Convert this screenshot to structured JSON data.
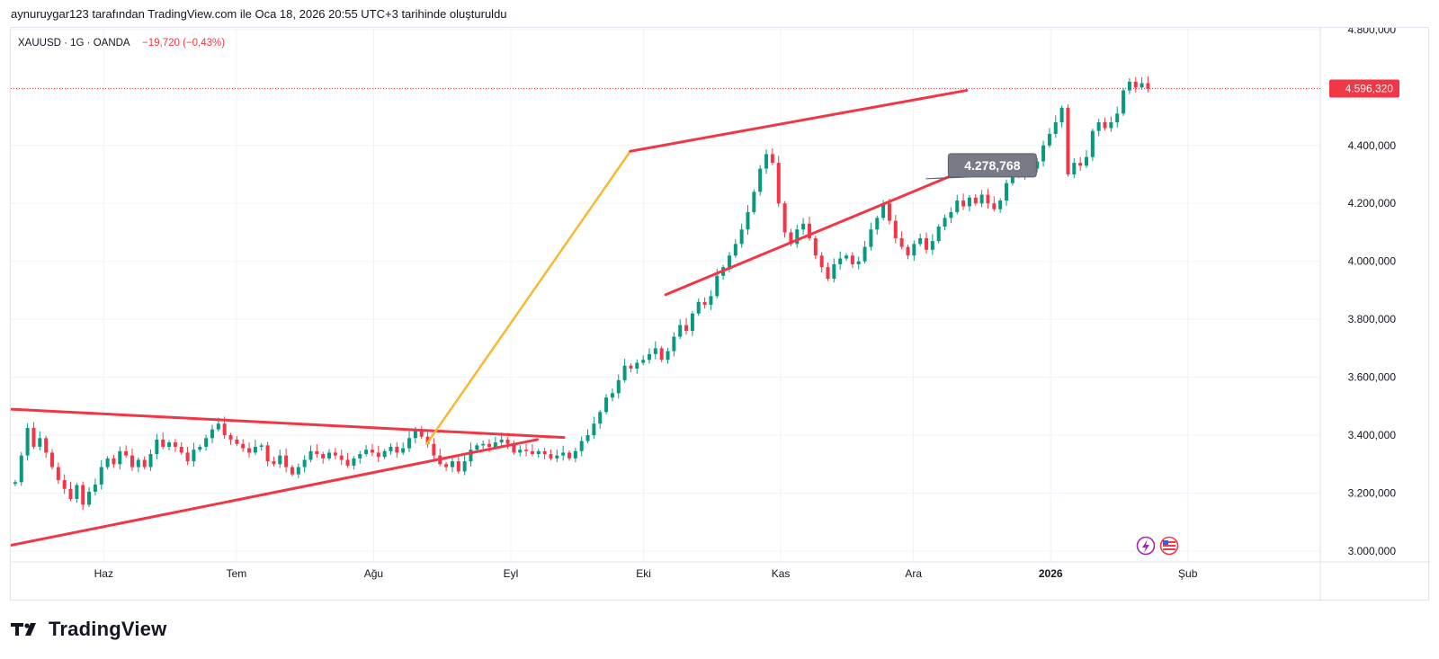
{
  "header": {
    "attribution": "aynuruygar123 tarafından TradingView.com ile Oca 18, 2026 20:55 UTC+3 tarihinde oluşturuldu"
  },
  "logo": {
    "text": "TradingView"
  },
  "colors": {
    "up": "#089981",
    "down": "#f23645",
    "trendline": "#f23645",
    "fib_line": "#f7b92f",
    "grid": "#f0f3fa",
    "callout_bg": "#787b86"
  },
  "chart_data": {
    "type": "candlestick",
    "symbol": "XAUUSD",
    "interval": "1G",
    "source": "OANDA",
    "legend": {
      "symbol_label": "XAUUSD · 1G · OANDA",
      "change_label": "−19,720 (−0,43%)"
    },
    "current_price": 4596.32,
    "current_price_label": "4.596,320",
    "y_range": [
      2960,
      4840
    ],
    "y_ticks": [
      {
        "value": 3000,
        "label": "3.000,000"
      },
      {
        "value": 3200,
        "label": "3.200,000"
      },
      {
        "value": 3400,
        "label": "3.400,000"
      },
      {
        "value": 3600,
        "label": "3.600,000"
      },
      {
        "value": 3800,
        "label": "3.800,000"
      },
      {
        "value": 4000,
        "label": "4.000,000"
      },
      {
        "value": 4200,
        "label": "4.200,000"
      },
      {
        "value": 4400,
        "label": "4.400,000"
      },
      {
        "value": 4600,
        "label": "4.600,000"
      },
      {
        "value": 4800,
        "label": "4.800,000"
      }
    ],
    "x_start": "2025-05-11",
    "x_days": 268,
    "x_ticks": [
      {
        "day": 21,
        "label": "Haz",
        "bold": false
      },
      {
        "day": 51,
        "label": "Tem",
        "bold": false
      },
      {
        "day": 82,
        "label": "Ağu",
        "bold": false
      },
      {
        "day": 113,
        "label": "Eyl",
        "bold": false
      },
      {
        "day": 143,
        "label": "Eki",
        "bold": false
      },
      {
        "day": 174,
        "label": "Kas",
        "bold": false
      },
      {
        "day": 204,
        "label": "Ara",
        "bold": false
      },
      {
        "day": 235,
        "label": "2026",
        "bold": true
      },
      {
        "day": 266,
        "label": "Şub",
        "bold": false
      }
    ],
    "candles": [
      {
        "d": 1,
        "c": 3238
      },
      {
        "d": 2,
        "c": 3330
      },
      {
        "d": 3,
        "c": 3425
      },
      {
        "d": 4,
        "c": 3360
      },
      {
        "d": 5,
        "c": 3390
      },
      {
        "d": 6,
        "c": 3340
      },
      {
        "d": 7,
        "c": 3290
      },
      {
        "d": 8,
        "c": 3245
      },
      {
        "d": 9,
        "c": 3215
      },
      {
        "d": 10,
        "c": 3180
      },
      {
        "d": 11,
        "c": 3228
      },
      {
        "d": 12,
        "c": 3160
      },
      {
        "d": 13,
        "c": 3205
      },
      {
        "d": 14,
        "c": 3230
      },
      {
        "d": 15,
        "c": 3290
      },
      {
        "d": 16,
        "c": 3320
      },
      {
        "d": 17,
        "c": 3300
      },
      {
        "d": 18,
        "c": 3345
      },
      {
        "d": 19,
        "c": 3330
      },
      {
        "d": 20,
        "c": 3290
      },
      {
        "d": 21,
        "c": 3315
      },
      {
        "d": 22,
        "c": 3290
      },
      {
        "d": 23,
        "c": 3335
      },
      {
        "d": 24,
        "c": 3385
      },
      {
        "d": 25,
        "c": 3360
      },
      {
        "d": 26,
        "c": 3375
      },
      {
        "d": 27,
        "c": 3360
      },
      {
        "d": 28,
        "c": 3340
      },
      {
        "d": 29,
        "c": 3310
      },
      {
        "d": 30,
        "c": 3350
      },
      {
        "d": 31,
        "c": 3360
      },
      {
        "d": 32,
        "c": 3390
      },
      {
        "d": 33,
        "c": 3420
      },
      {
        "d": 34,
        "c": 3440
      },
      {
        "d": 35,
        "c": 3400
      },
      {
        "d": 36,
        "c": 3385
      },
      {
        "d": 37,
        "c": 3370
      },
      {
        "d": 38,
        "c": 3355
      },
      {
        "d": 39,
        "c": 3340
      },
      {
        "d": 40,
        "c": 3360
      },
      {
        "d": 41,
        "c": 3365
      },
      {
        "d": 42,
        "c": 3310
      },
      {
        "d": 43,
        "c": 3300
      },
      {
        "d": 44,
        "c": 3330
      },
      {
        "d": 45,
        "c": 3290
      },
      {
        "d": 46,
        "c": 3265
      },
      {
        "d": 47,
        "c": 3290
      },
      {
        "d": 48,
        "c": 3315
      },
      {
        "d": 49,
        "c": 3345
      },
      {
        "d": 50,
        "c": 3335
      },
      {
        "d": 51,
        "c": 3320
      },
      {
        "d": 52,
        "c": 3340
      },
      {
        "d": 53,
        "c": 3330
      },
      {
        "d": 54,
        "c": 3315
      },
      {
        "d": 55,
        "c": 3295
      },
      {
        "d": 56,
        "c": 3320
      },
      {
        "d": 57,
        "c": 3335
      },
      {
        "d": 58,
        "c": 3350
      },
      {
        "d": 59,
        "c": 3340
      },
      {
        "d": 60,
        "c": 3325
      },
      {
        "d": 61,
        "c": 3345
      },
      {
        "d": 62,
        "c": 3360
      },
      {
        "d": 63,
        "c": 3340
      },
      {
        "d": 64,
        "c": 3355
      },
      {
        "d": 65,
        "c": 3390
      },
      {
        "d": 66,
        "c": 3420
      },
      {
        "d": 67,
        "c": 3395
      },
      {
        "d": 68,
        "c": 3370
      },
      {
        "d": 69,
        "c": 3330
      },
      {
        "d": 70,
        "c": 3300
      },
      {
        "d": 71,
        "c": 3290
      },
      {
        "d": 72,
        "c": 3310
      },
      {
        "d": 73,
        "c": 3275
      },
      {
        "d": 74,
        "c": 3310
      },
      {
        "d": 75,
        "c": 3350
      },
      {
        "d": 76,
        "c": 3365
      },
      {
        "d": 77,
        "c": 3370
      },
      {
        "d": 78,
        "c": 3360
      },
      {
        "d": 79,
        "c": 3375
      },
      {
        "d": 80,
        "c": 3385
      },
      {
        "d": 81,
        "c": 3370
      },
      {
        "d": 82,
        "c": 3340
      },
      {
        "d": 83,
        "c": 3350
      },
      {
        "d": 84,
        "c": 3345
      },
      {
        "d": 85,
        "c": 3335
      },
      {
        "d": 86,
        "c": 3345
      },
      {
        "d": 87,
        "c": 3335
      },
      {
        "d": 88,
        "c": 3320
      },
      {
        "d": 89,
        "c": 3330
      },
      {
        "d": 90,
        "c": 3340
      },
      {
        "d": 91,
        "c": 3320
      },
      {
        "d": 92,
        "c": 3345
      },
      {
        "d": 93,
        "c": 3380
      },
      {
        "d": 94,
        "c": 3400
      },
      {
        "d": 95,
        "c": 3440
      },
      {
        "d": 96,
        "c": 3480
      },
      {
        "d": 97,
        "c": 3530
      },
      {
        "d": 98,
        "c": 3545
      },
      {
        "d": 99,
        "c": 3590
      },
      {
        "d": 100,
        "c": 3640
      },
      {
        "d": 101,
        "c": 3630
      },
      {
        "d": 102,
        "c": 3650
      },
      {
        "d": 103,
        "c": 3660
      },
      {
        "d": 104,
        "c": 3680
      },
      {
        "d": 105,
        "c": 3700
      },
      {
        "d": 106,
        "c": 3660
      },
      {
        "d": 107,
        "c": 3690
      },
      {
        "d": 108,
        "c": 3740
      },
      {
        "d": 109,
        "c": 3780
      },
      {
        "d": 110,
        "c": 3760
      },
      {
        "d": 111,
        "c": 3820
      },
      {
        "d": 112,
        "c": 3860
      },
      {
        "d": 113,
        "c": 3850
      },
      {
        "d": 114,
        "c": 3880
      },
      {
        "d": 115,
        "c": 3950
      },
      {
        "d": 116,
        "c": 3980
      },
      {
        "d": 117,
        "c": 4020
      },
      {
        "d": 118,
        "c": 4060
      },
      {
        "d": 119,
        "c": 4110
      },
      {
        "d": 120,
        "c": 4170
      },
      {
        "d": 121,
        "c": 4240
      },
      {
        "d": 122,
        "c": 4320
      },
      {
        "d": 123,
        "c": 4370
      },
      {
        "d": 124,
        "c": 4340
      },
      {
        "d": 125,
        "c": 4200
      },
      {
        "d": 126,
        "c": 4100
      },
      {
        "d": 127,
        "c": 4060
      },
      {
        "d": 128,
        "c": 4110
      },
      {
        "d": 129,
        "c": 4130
      },
      {
        "d": 130,
        "c": 4080
      },
      {
        "d": 131,
        "c": 4020
      },
      {
        "d": 132,
        "c": 3980
      },
      {
        "d": 133,
        "c": 3940
      },
      {
        "d": 134,
        "c": 3990
      },
      {
        "d": 135,
        "c": 4010
      },
      {
        "d": 136,
        "c": 4020
      },
      {
        "d": 137,
        "c": 3990
      },
      {
        "d": 138,
        "c": 4000
      },
      {
        "d": 139,
        "c": 4050
      },
      {
        "d": 140,
        "c": 4110
      },
      {
        "d": 141,
        "c": 4150
      },
      {
        "d": 142,
        "c": 4200
      },
      {
        "d": 143,
        "c": 4140
      },
      {
        "d": 144,
        "c": 4080
      },
      {
        "d": 145,
        "c": 4050
      },
      {
        "d": 146,
        "c": 4020
      },
      {
        "d": 147,
        "c": 4060
      },
      {
        "d": 148,
        "c": 4080
      },
      {
        "d": 149,
        "c": 4040
      },
      {
        "d": 150,
        "c": 4070
      },
      {
        "d": 151,
        "c": 4120
      },
      {
        "d": 152,
        "c": 4150
      },
      {
        "d": 153,
        "c": 4170
      },
      {
        "d": 154,
        "c": 4210
      },
      {
        "d": 155,
        "c": 4190
      },
      {
        "d": 156,
        "c": 4220
      },
      {
        "d": 157,
        "c": 4200
      },
      {
        "d": 158,
        "c": 4230
      },
      {
        "d": 159,
        "c": 4200
      },
      {
        "d": 160,
        "c": 4180
      },
      {
        "d": 161,
        "c": 4210
      },
      {
        "d": 162,
        "c": 4270
      },
      {
        "d": 163,
        "c": 4330
      },
      {
        "d": 164,
        "c": 4300
      },
      {
        "d": 165,
        "c": 4340
      },
      {
        "d": 166,
        "c": 4320
      },
      {
        "d": 167,
        "c": 4345
      },
      {
        "d": 168,
        "c": 4400
      },
      {
        "d": 169,
        "c": 4440
      },
      {
        "d": 170,
        "c": 4480
      },
      {
        "d": 171,
        "c": 4530
      },
      {
        "d": 172,
        "c": 4300
      },
      {
        "d": 173,
        "c": 4340
      },
      {
        "d": 174,
        "c": 4330
      },
      {
        "d": 175,
        "c": 4360
      },
      {
        "d": 176,
        "c": 4450
      },
      {
        "d": 177,
        "c": 4480
      },
      {
        "d": 178,
        "c": 4460
      },
      {
        "d": 179,
        "c": 4480
      },
      {
        "d": 180,
        "c": 4510
      },
      {
        "d": 181,
        "c": 4590
      },
      {
        "d": 182,
        "c": 4620
      },
      {
        "d": 183,
        "c": 4600
      },
      {
        "d": 184,
        "c": 4615
      },
      {
        "d": 185,
        "c": 4596
      }
    ],
    "annotations": {
      "triangle_upper_line": {
        "from": {
          "day": 0,
          "price": 3490
        },
        "to": {
          "day": 125,
          "price": 3392
        }
      },
      "triangle_lower_line": {
        "from": {
          "day": 0,
          "price": 3020
        },
        "to": {
          "day": 119,
          "price": 3385
        }
      },
      "impulse_line": {
        "from": {
          "day": 94,
          "price": 3370
        },
        "to": {
          "day": 140,
          "price": 4380
        }
      },
      "channel_upper_line": {
        "from": {
          "day": 140,
          "price": 4380
        },
        "to": {
          "day": 216,
          "price": 4590
        }
      },
      "channel_lower_line": {
        "from": {
          "day": 148,
          "price": 3885
        },
        "to": {
          "day": 218,
          "price": 4330
        }
      },
      "callout": {
        "label": "4.278,768",
        "price": 4278.768,
        "day": 208
      }
    }
  }
}
